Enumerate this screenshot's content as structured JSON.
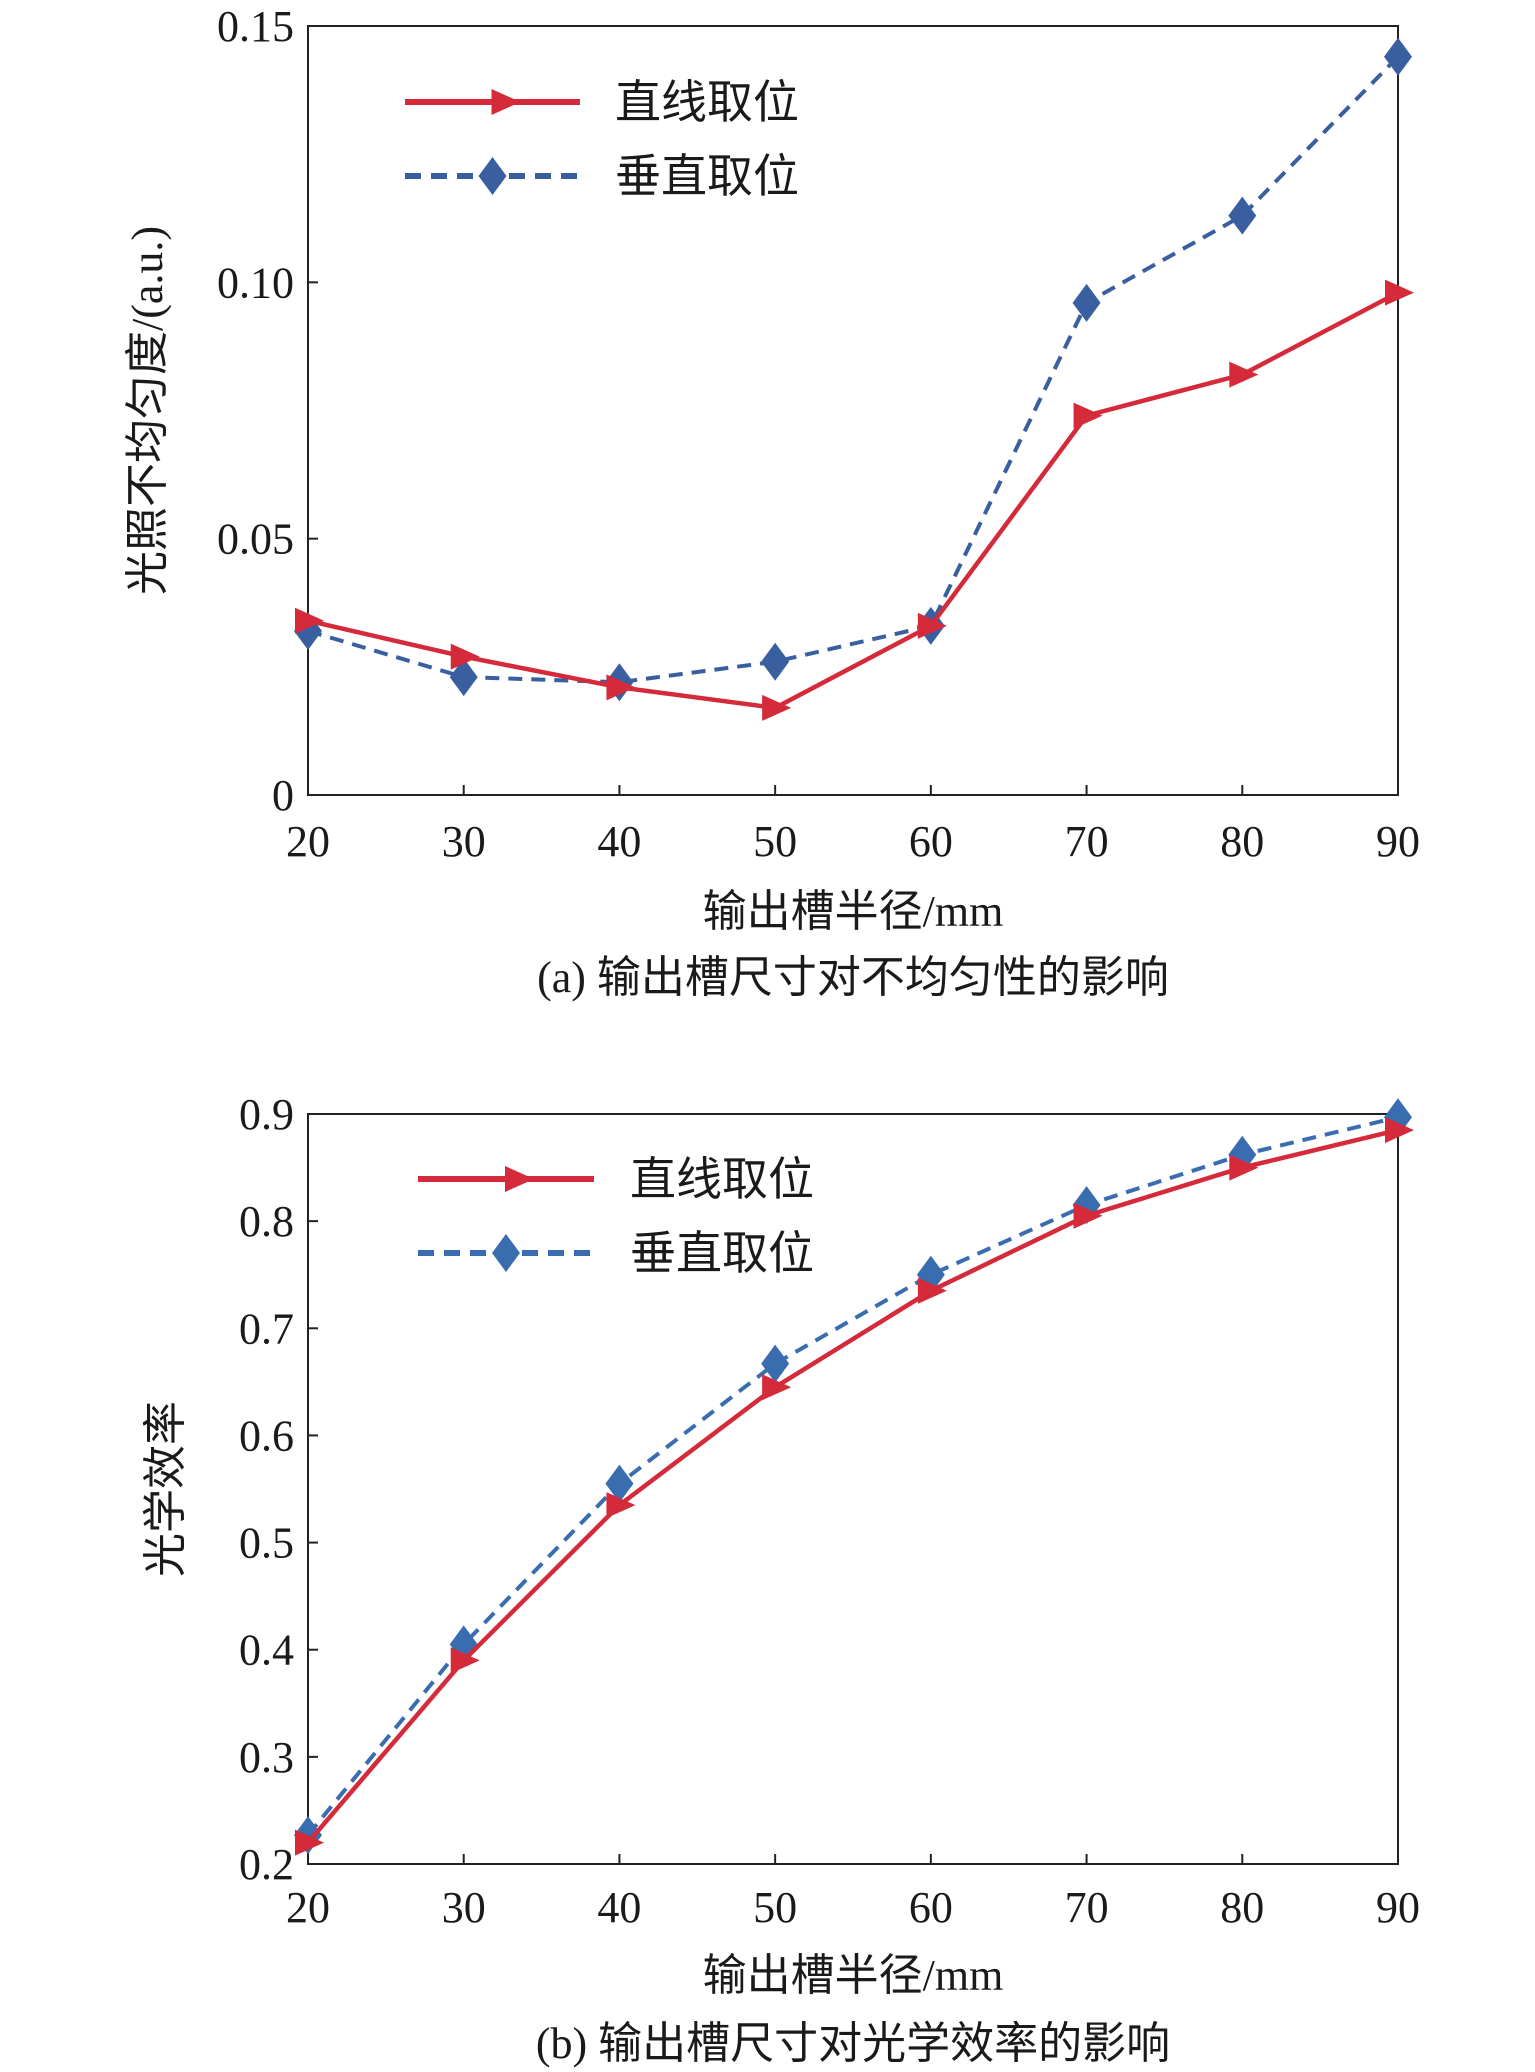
{
  "chart_data": [
    {
      "type": "line",
      "caption": "(a) 输出槽尺寸对不均匀性的影响",
      "xlabel": "输出槽半径/mm",
      "ylabel": "光照不均匀度/(a.u.)",
      "x": [
        20,
        30,
        40,
        50,
        60,
        70,
        80,
        90
      ],
      "xlim": [
        20,
        90
      ],
      "ylim": [
        0,
        0.15
      ],
      "yticks": [
        "0",
        "0.05",
        "0.10",
        "0.15"
      ],
      "xticks": [
        "20",
        "30",
        "40",
        "50",
        "60",
        "70",
        "80",
        "90"
      ],
      "legend_position": "top-left",
      "grid": false,
      "series": [
        {
          "name": "直线取位",
          "values": [
            0.034,
            0.027,
            0.021,
            0.017,
            0.033,
            0.074,
            0.082,
            0.098
          ],
          "color": "#d42a3a",
          "style": "solid",
          "marker": "triangle-right"
        },
        {
          "name": "垂直取位",
          "values": [
            0.032,
            0.023,
            0.022,
            0.026,
            0.033,
            0.096,
            0.113,
            0.144
          ],
          "color": "#3a5fa0",
          "style": "dashed",
          "marker": "diamond"
        }
      ]
    },
    {
      "type": "line",
      "caption": "(b) 输出槽尺寸对光学效率的影响",
      "xlabel": "输出槽半径/mm",
      "ylabel": "光学效率",
      "x": [
        20,
        30,
        40,
        50,
        60,
        70,
        80,
        90
      ],
      "xlim": [
        20,
        90
      ],
      "ylim": [
        0.2,
        0.9
      ],
      "yticks": [
        "0.2",
        "0.3",
        "0.4",
        "0.5",
        "0.6",
        "0.7",
        "0.8",
        "0.9"
      ],
      "xticks": [
        "20",
        "30",
        "40",
        "50",
        "60",
        "70",
        "80",
        "90"
      ],
      "legend_position": "top-left",
      "grid": false,
      "series": [
        {
          "name": "直线取位",
          "values": [
            0.22,
            0.39,
            0.535,
            0.645,
            0.735,
            0.805,
            0.85,
            0.885
          ],
          "color": "#d42a3a",
          "style": "solid",
          "marker": "triangle-right"
        },
        {
          "name": "垂直取位",
          "values": [
            0.227,
            0.405,
            0.555,
            0.667,
            0.75,
            0.815,
            0.862,
            0.897
          ],
          "color": "#3a6db0",
          "style": "dashed",
          "marker": "diamond"
        }
      ]
    }
  ]
}
